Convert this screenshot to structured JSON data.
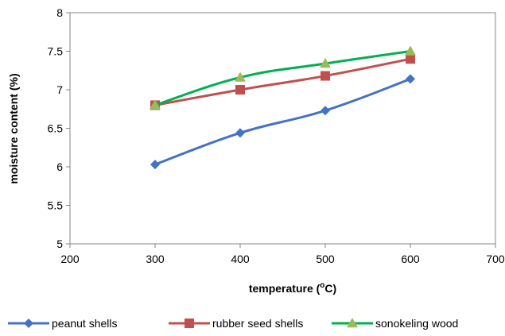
{
  "chart_data": {
    "type": "line",
    "xlabel": "temperature (oC)",
    "xlabel_parts": {
      "prefix": "temperature (",
      "superscript": "o",
      "suffix": "C)"
    },
    "ylabel": "moisture  content (%)",
    "xlim": [
      200,
      700
    ],
    "ylim": [
      5,
      8
    ],
    "x_ticks": [
      200,
      300,
      400,
      500,
      600,
      700
    ],
    "y_ticks": [
      5,
      5.5,
      6,
      6.5,
      7,
      7.5,
      8
    ],
    "y_tick_labels": [
      "5",
      "5.5",
      "6",
      "6.5",
      "7",
      "7.5",
      "8"
    ],
    "grid": false,
    "legend_position": "bottom",
    "x": [
      300,
      400,
      500,
      600
    ],
    "series": [
      {
        "name": "peanut shells",
        "values": [
          6.03,
          6.44,
          6.73,
          7.14
        ],
        "color": "#4472C4",
        "marker": "diamond"
      },
      {
        "name": "rubber  seed shells",
        "values": [
          6.8,
          7.0,
          7.18,
          7.4
        ],
        "color": "#C0504D",
        "marker": "square"
      },
      {
        "name": "sonokeling wood",
        "values": [
          6.8,
          7.16,
          7.34,
          7.5
        ],
        "color": "#9BBB59",
        "line_color": "#00B050",
        "marker": "triangle"
      }
    ]
  }
}
